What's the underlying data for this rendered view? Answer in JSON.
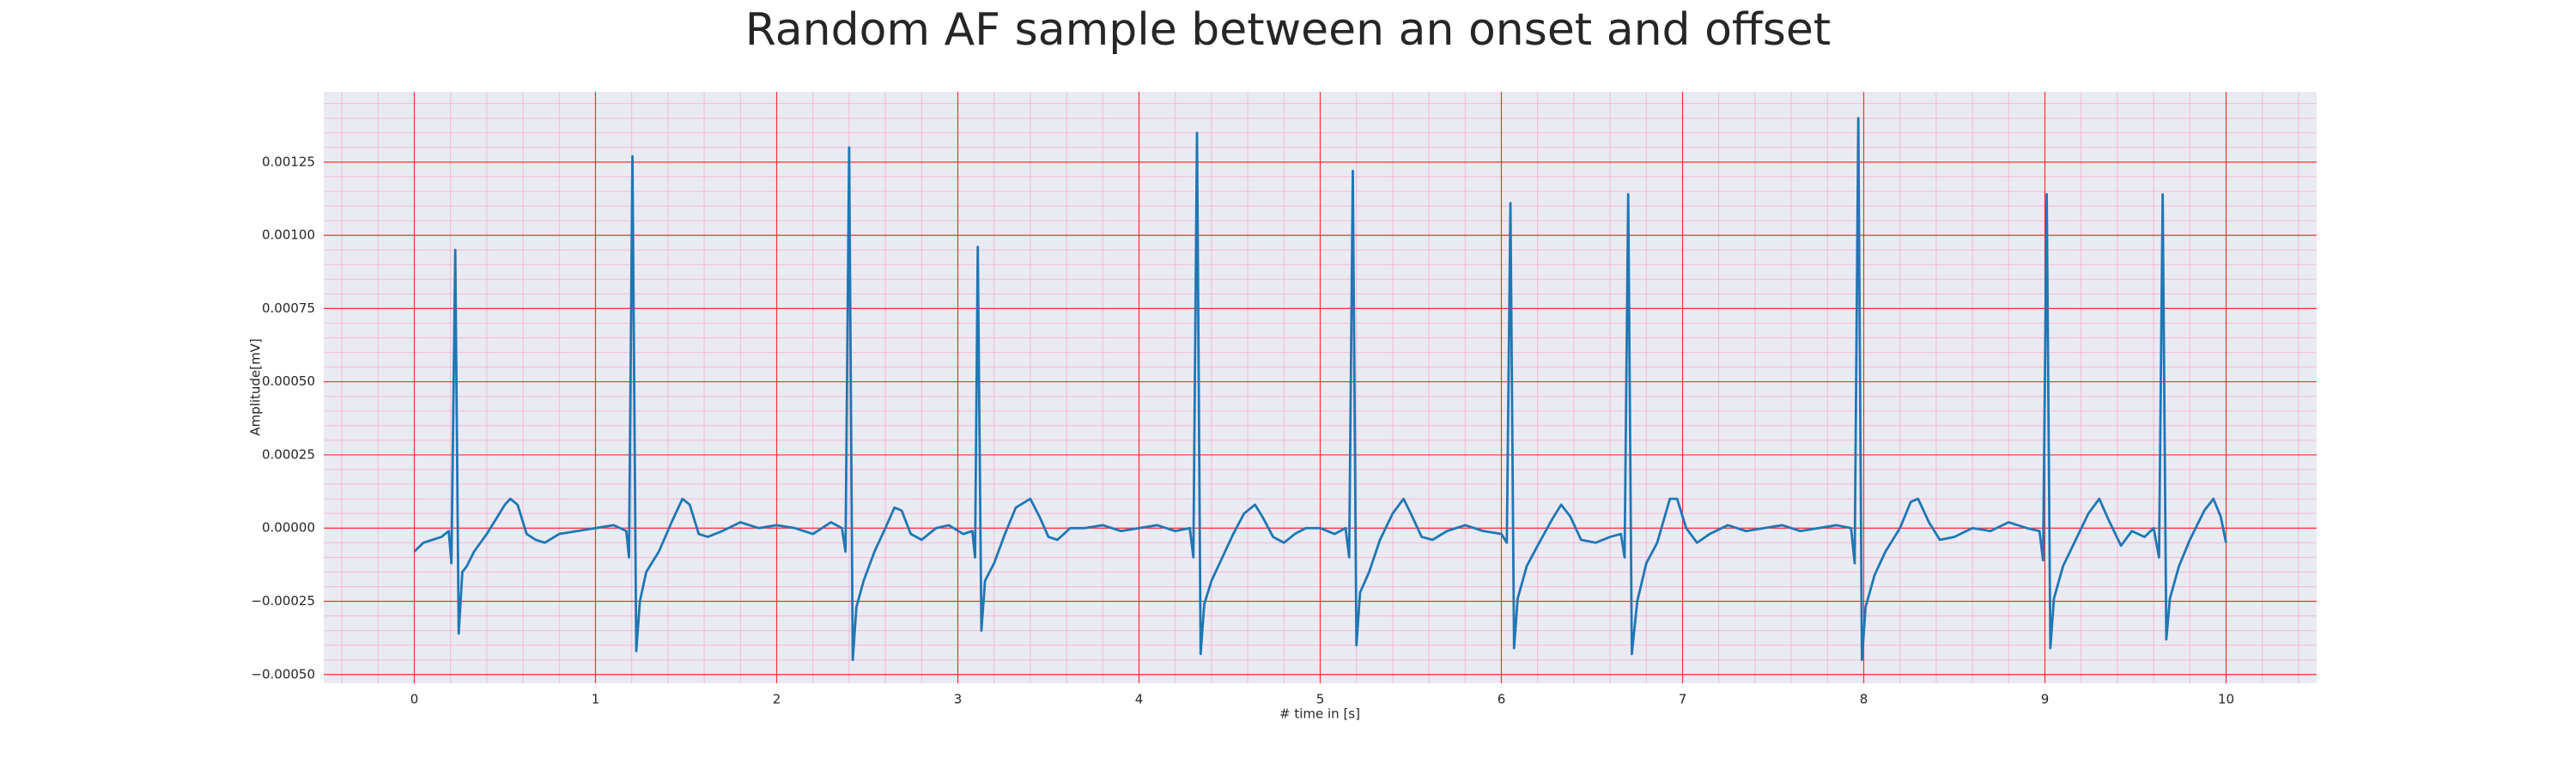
{
  "chart_data": {
    "type": "line",
    "title": "Random AF sample between an onset and offset",
    "xlabel": "# time in [s]",
    "ylabel": "Amplitude[mV]",
    "x": [
      0,
      0.05,
      0.1,
      0.15,
      0.19,
      0.205,
      0.226,
      0.245,
      0.265,
      0.29,
      0.33,
      0.4,
      0.45,
      0.5,
      0.53,
      0.57,
      0.62,
      0.67,
      0.72,
      0.8,
      0.9,
      1.0,
      1.1,
      1.17,
      1.185,
      1.204,
      1.225,
      1.245,
      1.28,
      1.35,
      1.42,
      1.48,
      1.52,
      1.57,
      1.62,
      1.7,
      1.8,
      1.9,
      2.0,
      2.1,
      2.2,
      2.3,
      2.36,
      2.38,
      2.4,
      2.42,
      2.44,
      2.48,
      2.54,
      2.6,
      2.65,
      2.69,
      2.74,
      2.8,
      2.88,
      2.95,
      3.03,
      3.08,
      3.095,
      3.11,
      3.13,
      3.15,
      3.2,
      3.26,
      3.32,
      3.4,
      3.45,
      3.5,
      3.55,
      3.62,
      3.7,
      3.8,
      3.9,
      4.0,
      4.1,
      4.2,
      4.28,
      4.3,
      4.32,
      4.34,
      4.36,
      4.4,
      4.46,
      4.52,
      4.58,
      4.64,
      4.68,
      4.74,
      4.8,
      4.86,
      4.92,
      5.0,
      5.08,
      5.14,
      5.16,
      5.18,
      5.2,
      5.22,
      5.27,
      5.33,
      5.4,
      5.46,
      5.5,
      5.56,
      5.62,
      5.7,
      5.8,
      5.9,
      6.0,
      6.03,
      6.05,
      6.07,
      6.09,
      6.14,
      6.2,
      6.28,
      6.33,
      6.38,
      6.44,
      6.52,
      6.6,
      6.66,
      6.68,
      6.7,
      6.72,
      6.75,
      6.8,
      6.86,
      6.93,
      6.97,
      7.02,
      7.08,
      7.15,
      7.25,
      7.35,
      7.45,
      7.55,
      7.65,
      7.75,
      7.85,
      7.93,
      7.95,
      7.97,
      7.99,
      8.01,
      8.06,
      8.12,
      8.2,
      8.26,
      8.3,
      8.36,
      8.42,
      8.5,
      8.6,
      8.7,
      8.8,
      8.9,
      8.97,
      8.99,
      9.01,
      9.03,
      9.05,
      9.1,
      9.17,
      9.24,
      9.3,
      9.35,
      9.42,
      9.48,
      9.55,
      9.6,
      9.63,
      9.65,
      9.67,
      9.69,
      9.74,
      9.8,
      9.88,
      9.93,
      9.97,
      10.0
    ],
    "series": [
      {
        "color": "#1f77b4",
        "values": [
          -8e-05,
          -5e-05,
          -4e-05,
          -3e-05,
          -1e-05,
          -0.00012,
          0.00095,
          -0.00036,
          -0.00015,
          -0.00013,
          -8e-05,
          -2e-05,
          3e-05,
          8e-05,
          0.0001,
          8e-05,
          -2e-05,
          -4e-05,
          -5e-05,
          -2e-05,
          -1e-05,
          0.0,
          1e-05,
          -1e-05,
          -0.0001,
          0.00127,
          -0.00042,
          -0.00025,
          -0.00015,
          -8e-05,
          2e-05,
          0.0001,
          8e-05,
          -2e-05,
          -3e-05,
          -1e-05,
          2e-05,
          0.0,
          1e-05,
          0.0,
          -2e-05,
          2e-05,
          0.0,
          -8e-05,
          0.0013,
          -0.00045,
          -0.00027,
          -0.00018,
          -8e-05,
          0.0,
          7e-05,
          6e-05,
          -2e-05,
          -4e-05,
          0.0,
          1e-05,
          -2e-05,
          -1e-05,
          -0.0001,
          0.00096,
          -0.00035,
          -0.00018,
          -0.00012,
          -2e-05,
          7e-05,
          0.0001,
          4e-05,
          -3e-05,
          -4e-05,
          0.0,
          0.0,
          1e-05,
          -1e-05,
          0.0,
          1e-05,
          -1e-05,
          0.0,
          -0.0001,
          0.00135,
          -0.00043,
          -0.00026,
          -0.00018,
          -0.0001,
          -2e-05,
          5e-05,
          8e-05,
          4e-05,
          -3e-05,
          -5e-05,
          -2e-05,
          0.0,
          0.0,
          -2e-05,
          0.0,
          -0.0001,
          0.00122,
          -0.0004,
          -0.00022,
          -0.00015,
          -4e-05,
          5e-05,
          0.0001,
          5e-05,
          -3e-05,
          -4e-05,
          -1e-05,
          1e-05,
          -1e-05,
          -2e-05,
          -5e-05,
          0.00111,
          -0.00041,
          -0.00024,
          -0.00013,
          -6e-05,
          3e-05,
          8e-05,
          4e-05,
          -4e-05,
          -5e-05,
          -3e-05,
          -2e-05,
          -0.0001,
          0.00114,
          -0.00043,
          -0.00025,
          -0.00012,
          -5e-05,
          0.0001,
          0.0001,
          0.0,
          -5e-05,
          -2e-05,
          1e-05,
          -1e-05,
          0.0,
          1e-05,
          -1e-05,
          0.0,
          1e-05,
          0.0,
          -0.00012,
          0.0014,
          -0.00045,
          -0.00027,
          -0.00016,
          -8e-05,
          0.0,
          9e-05,
          0.0001,
          2e-05,
          -4e-05,
          -3e-05,
          0.0,
          -1e-05,
          2e-05,
          0.0,
          -1e-05,
          -0.00011,
          0.00114,
          -0.00041,
          -0.00024,
          -0.00013,
          -4e-05,
          5e-05,
          0.0001,
          3e-05,
          -6e-05,
          -1e-05,
          -3e-05,
          0.0,
          -0.0001,
          0.00114,
          -0.00038,
          -0.00024,
          -0.00013,
          -4e-05,
          6e-05,
          0.0001,
          4e-05,
          -5e-05
        ]
      }
    ],
    "xlim": [
      -0.5,
      10.5
    ],
    "ylim": [
      -0.00053,
      0.00149
    ],
    "xticks": [
      0,
      1,
      2,
      3,
      4,
      5,
      6,
      7,
      8,
      9,
      10
    ],
    "yticks": [
      {
        "value": -0.0005,
        "label": "−0.00050"
      },
      {
        "value": -0.00025,
        "label": "−0.00025"
      },
      {
        "value": 0,
        "label": "0.00000"
      },
      {
        "value": 0.00025,
        "label": "0.00025"
      },
      {
        "value": 0.0005,
        "label": "0.00050"
      },
      {
        "value": 0.00075,
        "label": "0.00075"
      },
      {
        "value": 0.001,
        "label": "0.00100"
      },
      {
        "value": 0.00125,
        "label": "0.00125"
      }
    ],
    "grid": true,
    "grid_color": "#ff3030",
    "minor_grid": {
      "x_step": 0.2,
      "y_step": 5e-05,
      "color": "#f4a6c8"
    },
    "background": "#eaeaf2"
  }
}
